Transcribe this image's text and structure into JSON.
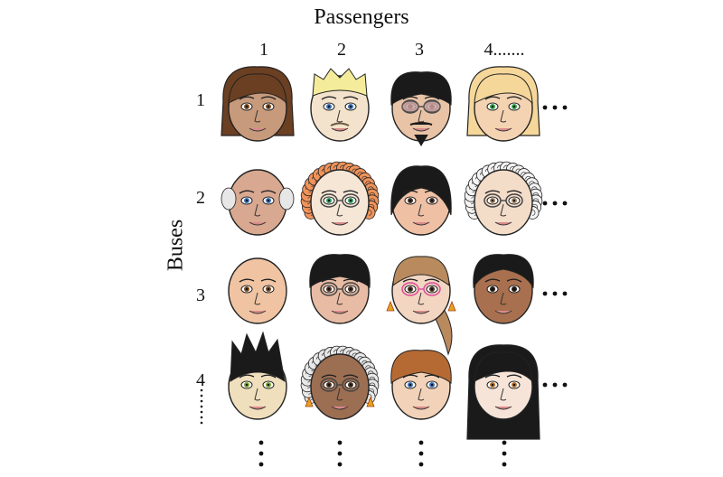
{
  "diagram": {
    "column_axis_label": "Passengers",
    "row_axis_label": "Buses",
    "column_labels": [
      "1",
      "2",
      "3",
      "4......."
    ],
    "row_labels": [
      "1",
      "2",
      "3",
      "4"
    ],
    "faces": [
      {
        "id": "r1c1",
        "skin": "#c79a7c",
        "hair": "#6b3f22",
        "eye": "#7a4a20",
        "style": "long-straight"
      },
      {
        "id": "r1c2",
        "skin": "#f4e3cc",
        "hair": "#f4ec9a",
        "eye": "#3d6fb5",
        "style": "spiky-short",
        "extra": "mustache"
      },
      {
        "id": "r1c3",
        "skin": "#e9c3a6",
        "hair": "#1a1a1a",
        "eye": "#3a2a20",
        "style": "short-dark",
        "extra": "sunglasses-goatee"
      },
      {
        "id": "r1c4",
        "skin": "#f4d3b2",
        "hair": "#f6d79a",
        "eye": "#36a24b",
        "style": "blonde-long"
      },
      {
        "id": "r2c1",
        "skin": "#d8a890",
        "hair": "#e7e7e7",
        "eye": "#3d6fb5",
        "style": "bald-sides"
      },
      {
        "id": "r2c2",
        "skin": "#f5e6d6",
        "hair": "#f0935a",
        "eye": "#2e9a5e",
        "style": "curly",
        "extra": "glasses"
      },
      {
        "id": "r2c3",
        "skin": "#efc0a4",
        "hair": "#1a1a1a",
        "eye": "#4a3020",
        "style": "bob-dark"
      },
      {
        "id": "r2c4",
        "skin": "#f3dcc8",
        "hair": "#f4f4f4",
        "eye": "#9a8060",
        "style": "curly",
        "extra": "glasses"
      },
      {
        "id": "r3c1",
        "skin": "#f0c4a2",
        "hair": "none",
        "eye": "#7a4a20",
        "style": "bald"
      },
      {
        "id": "r3c2",
        "skin": "#e8bca4",
        "hair": "#1a1a1a",
        "eye": "#4a3020",
        "style": "short-dark",
        "extra": "glasses"
      },
      {
        "id": "r3c3",
        "skin": "#f2d6c2",
        "hair": "#b88a5e",
        "eye": "#4a3020",
        "style": "ponytail",
        "extra": "pink-glasses-earrings"
      },
      {
        "id": "r3c4",
        "skin": "#a8704e",
        "hair": "#1a1a1a",
        "eye": "#2a1a10",
        "style": "receding-dark"
      },
      {
        "id": "r4c1",
        "skin": "#f0dfbc",
        "hair": "#1a1a1a",
        "eye": "#7aa83a",
        "style": "spiky-tall"
      },
      {
        "id": "r4c2",
        "skin": "#9c6e52",
        "hair": "#e8e8e8",
        "eye": "#4a3020",
        "style": "curly",
        "extra": "glasses-earrings"
      },
      {
        "id": "r4c3",
        "skin": "#f2d2b8",
        "hair": "#b56a34",
        "eye": "#3d6fb5",
        "style": "short-brown"
      },
      {
        "id": "r4c4",
        "skin": "#f6e4d8",
        "hair": "#1a1a1a",
        "eye": "#b5702a",
        "style": "long-dark"
      }
    ]
  }
}
